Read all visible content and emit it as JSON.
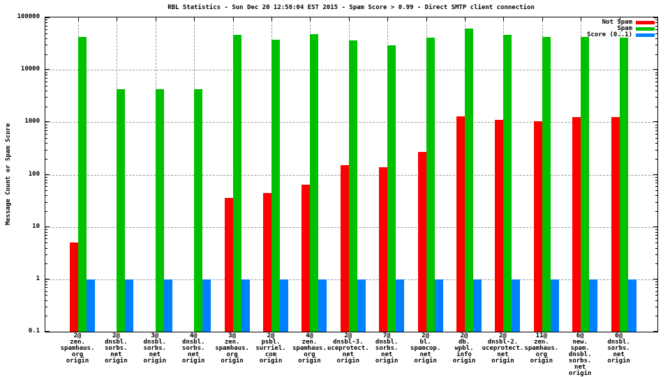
{
  "chart_data": {
    "type": "bar",
    "title": "RBL Statistics - Sun Dec 20 12:58:04 EST 2015 - Spam Score > 0.99 - Direct SMTP client connection",
    "ylabel": "Message Count or Spam Score",
    "xlabel": "",
    "y_scale": "log10",
    "ylim": [
      0.1,
      100000
    ],
    "ytick_labels": [
      "100000",
      "10000",
      "1000",
      "100",
      "10",
      "1",
      "0.1"
    ],
    "grid": true,
    "legend_position": "top-right-inside",
    "colors": {
      "not_spam": "#ff0000",
      "spam": "#00c000",
      "score": "#0080ff",
      "grid": "#999999",
      "frame": "#000000"
    },
    "categories": [
      [
        "2@",
        "zen.",
        "spamhaus.",
        "org",
        "origin"
      ],
      [
        "2@",
        "dnsbl.",
        "sorbs.",
        "net",
        "origin"
      ],
      [
        "3@",
        "dnsbl.",
        "sorbs.",
        "net",
        "origin"
      ],
      [
        "4@",
        "dnsbl.",
        "sorbs.",
        "net",
        "origin"
      ],
      [
        "3@",
        "zen.",
        "spamhaus.",
        "org",
        "origin"
      ],
      [
        "2@",
        "psbl.",
        "surriel.",
        "com",
        "origin"
      ],
      [
        "4@",
        "zen.",
        "spamhaus.",
        "org",
        "origin"
      ],
      [
        "2@",
        "dnsbl-3.",
        "uceprotect.",
        "net",
        "origin"
      ],
      [
        "7@",
        "dnsbl.",
        "sorbs.",
        "net",
        "origin"
      ],
      [
        "2@",
        "bl.",
        "spamcop.",
        "net",
        "origin"
      ],
      [
        "2@",
        "db.",
        "wpbl.",
        "info",
        "origin"
      ],
      [
        "2@",
        "dnsbl-2.",
        "uceprotect.",
        "net",
        "origin"
      ],
      [
        "11@",
        "zen.",
        "spamhaus.",
        "org",
        "origin"
      ],
      [
        "6@",
        "new.",
        "spam.",
        "dnsbl.",
        "sorbs.",
        "net",
        "origin"
      ],
      [
        "6@",
        "dnsbl.",
        "sorbs.",
        "net",
        "origin"
      ]
    ],
    "series": [
      {
        "name": "Not Spam",
        "key": "not_spam",
        "values": [
          5,
          0,
          0,
          0,
          36,
          44,
          65,
          150,
          140,
          270,
          1300,
          1100,
          1050,
          1250,
          1250
        ]
      },
      {
        "name": "Spam",
        "key": "spam",
        "values": [
          42000,
          4200,
          4200,
          4200,
          46000,
          37000,
          48000,
          36000,
          29000,
          41000,
          62000,
          47000,
          43000,
          42000,
          41000
        ]
      },
      {
        "name": "Score (0..1)",
        "key": "score",
        "values": [
          1,
          1,
          1,
          1,
          1,
          1,
          1,
          1,
          1,
          1,
          1,
          1,
          1,
          1,
          1
        ]
      }
    ]
  }
}
